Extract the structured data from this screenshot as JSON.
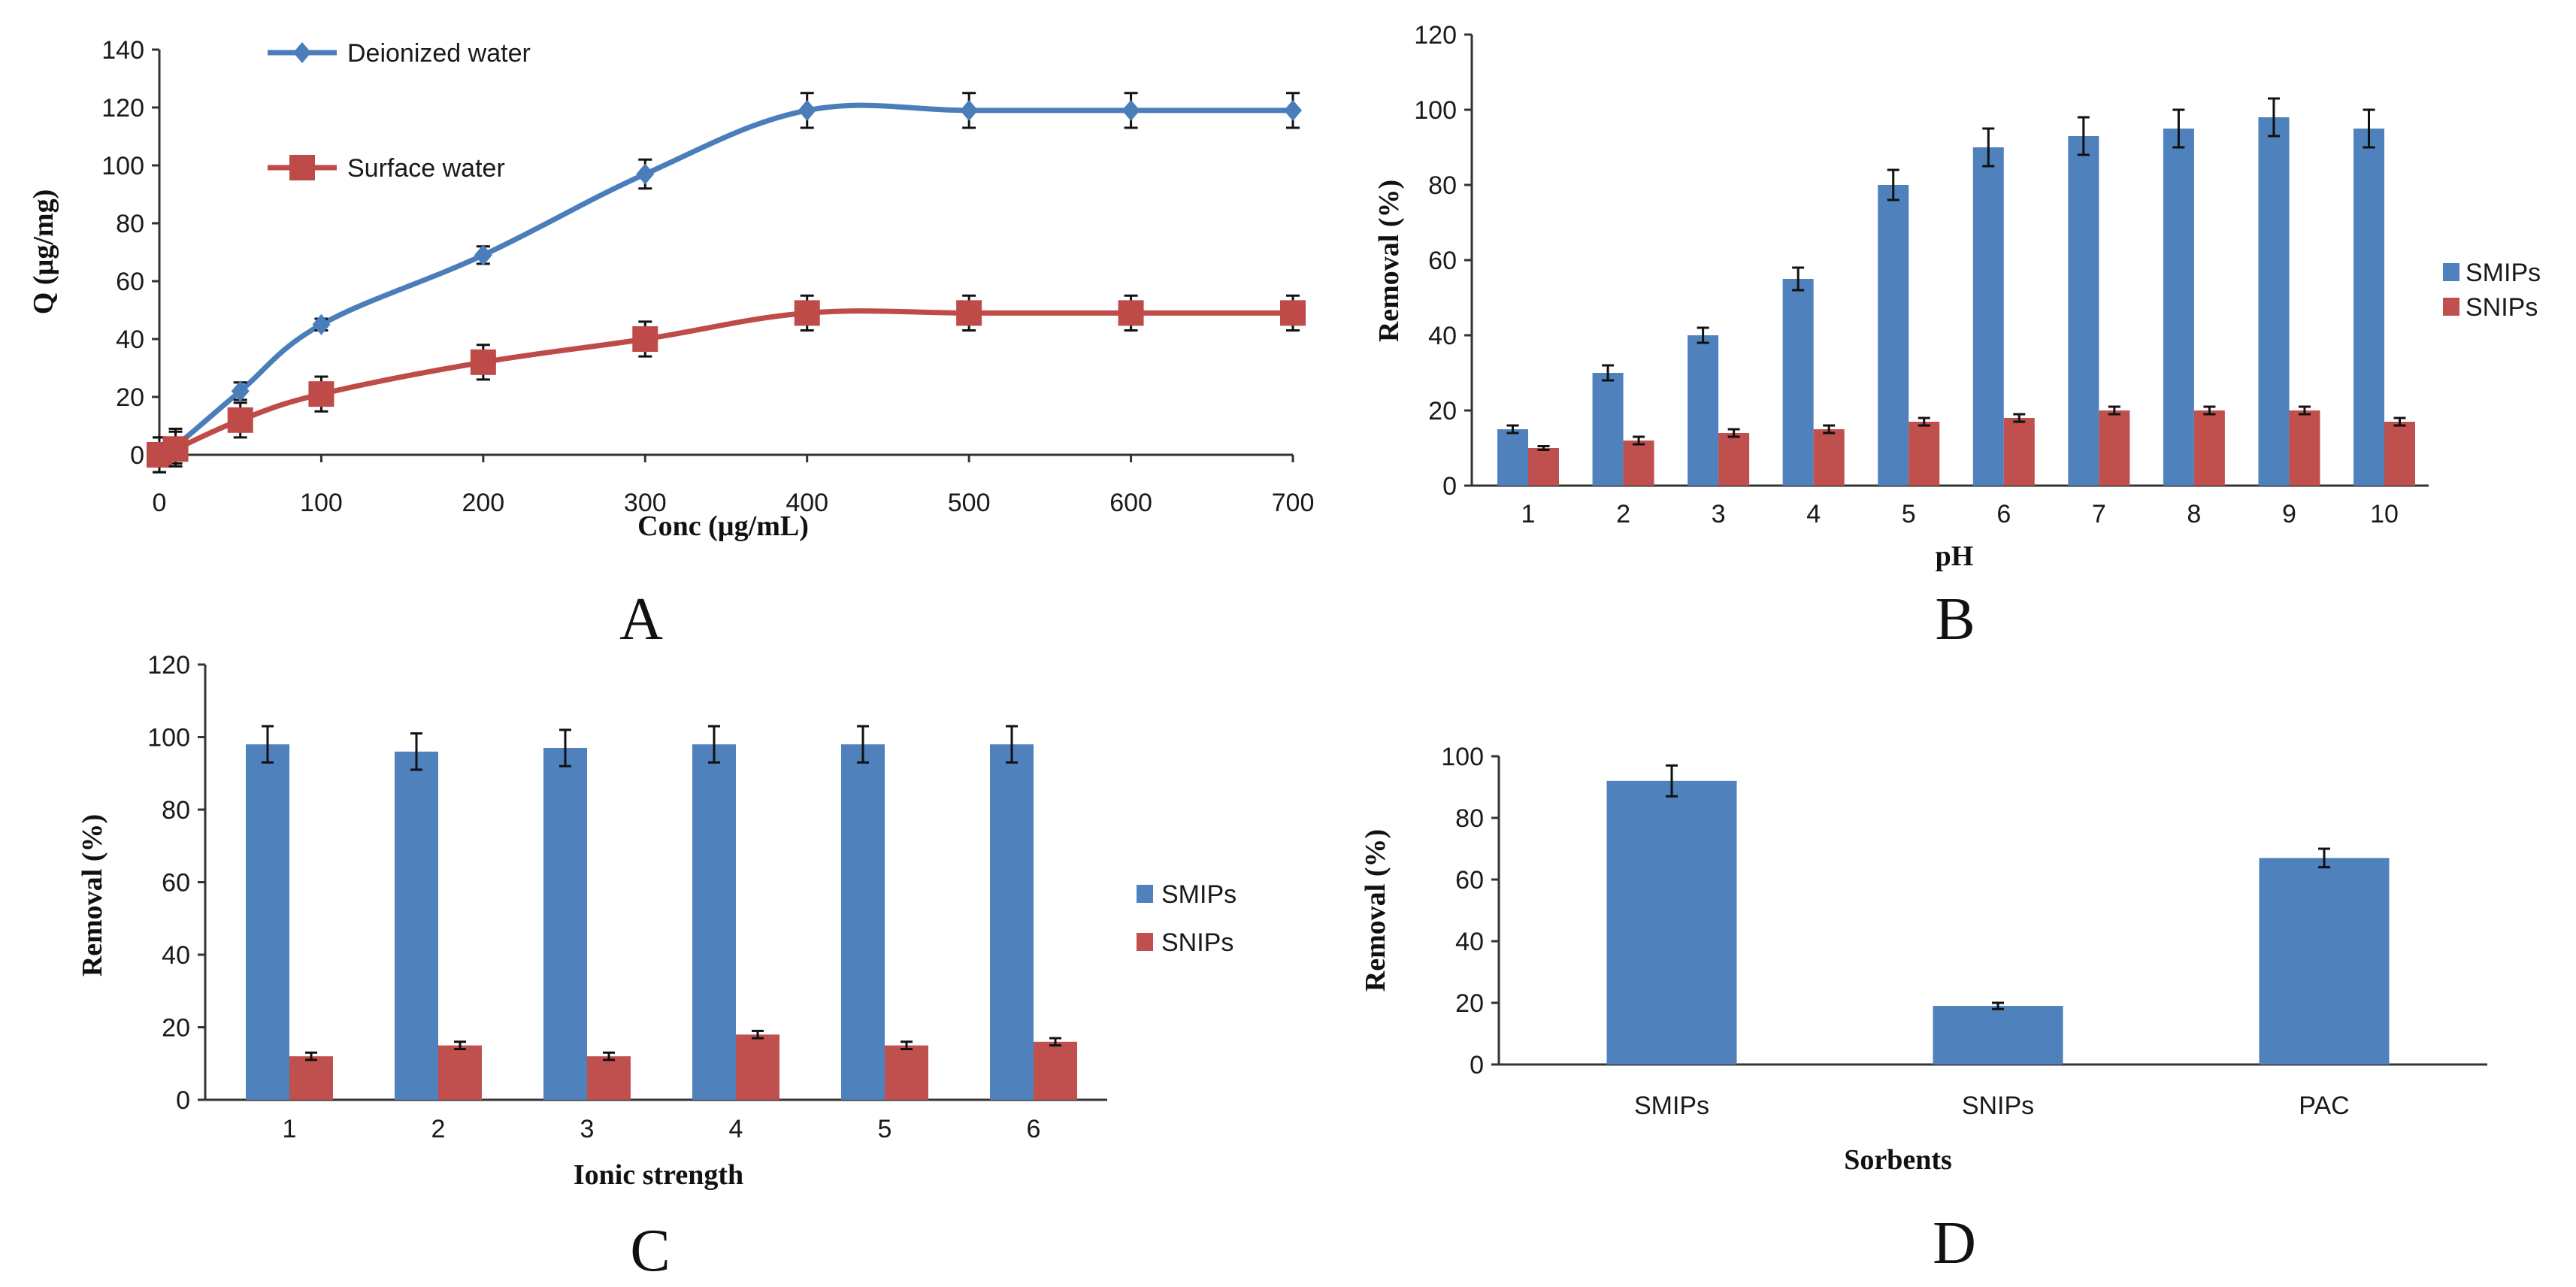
{
  "chart_data": [
    {
      "panel_label": "A",
      "type": "line",
      "xlabel": "Conc (µg/mL)",
      "ylabel": "Q (µg/mg)",
      "xlim": [
        0,
        700
      ],
      "xstep": 100,
      "ylim": [
        0,
        140
      ],
      "ystep": 20,
      "x": [
        0,
        10,
        50,
        100,
        200,
        300,
        400,
        500,
        600,
        700
      ],
      "legend": "top-left",
      "series": [
        {
          "name": "Deionized water",
          "marker": "diamond",
          "color": "#4a7ebb",
          "values": [
            0,
            3,
            22,
            45,
            69,
            97,
            119,
            119,
            119,
            119
          ],
          "errors": [
            6,
            6,
            3,
            2,
            3,
            5,
            6,
            6,
            6,
            6
          ]
        },
        {
          "name": "Surface water",
          "marker": "square",
          "color": "#be4b48",
          "values": [
            0,
            2,
            12,
            21,
            32,
            40,
            49,
            49,
            49,
            49
          ],
          "errors": [
            6,
            6,
            6,
            6,
            6,
            6,
            6,
            6,
            6,
            6
          ]
        }
      ]
    },
    {
      "panel_label": "B",
      "type": "bar",
      "xlabel": "pH",
      "ylabel": "Removal (%)",
      "ylim": [
        0,
        120
      ],
      "ystep": 20,
      "categories": [
        "1",
        "2",
        "3",
        "4",
        "5",
        "6",
        "7",
        "8",
        "9",
        "10"
      ],
      "legend": "right",
      "series": [
        {
          "name": "SMIPs",
          "color": "#4f81bd",
          "values": [
            15,
            30,
            40,
            55,
            80,
            90,
            93,
            95,
            98,
            95
          ],
          "errors": [
            1,
            2,
            2,
            3,
            4,
            5,
            5,
            5,
            5,
            5
          ]
        },
        {
          "name": "SNIPs",
          "color": "#c0504d",
          "values": [
            10,
            12,
            14,
            15,
            17,
            18,
            20,
            20,
            20,
            17
          ],
          "errors": [
            0.5,
            1,
            1,
            1,
            1,
            1,
            1,
            1,
            1,
            1
          ]
        }
      ]
    },
    {
      "panel_label": "C",
      "type": "bar",
      "xlabel": "Ionic strength",
      "ylabel": "Removal  (%)",
      "ylim": [
        0,
        120
      ],
      "ystep": 20,
      "categories": [
        "1",
        "2",
        "3",
        "4",
        "5",
        "6"
      ],
      "legend": "right",
      "series": [
        {
          "name": "SMIPs",
          "color": "#4f81bd",
          "values": [
            98,
            96,
            97,
            98,
            98,
            98
          ],
          "errors": [
            5,
            5,
            5,
            5,
            5,
            5
          ]
        },
        {
          "name": "SNIPs",
          "color": "#c0504d",
          "values": [
            12,
            15,
            12,
            18,
            15,
            16
          ],
          "errors": [
            1,
            1,
            1,
            1,
            1,
            1
          ]
        }
      ]
    },
    {
      "panel_label": "D",
      "type": "bar",
      "xlabel": "Sorbents",
      "ylabel": "Removal (%)",
      "ylim": [
        0,
        100
      ],
      "ystep": 20,
      "categories": [
        "SMIPs",
        "SNIPs",
        "PAC"
      ],
      "legend": "none",
      "series": [
        {
          "name": "Removal",
          "color": "#4f81bd",
          "values": [
            92,
            19,
            67
          ],
          "errors": [
            5,
            1,
            3
          ]
        }
      ]
    }
  ]
}
